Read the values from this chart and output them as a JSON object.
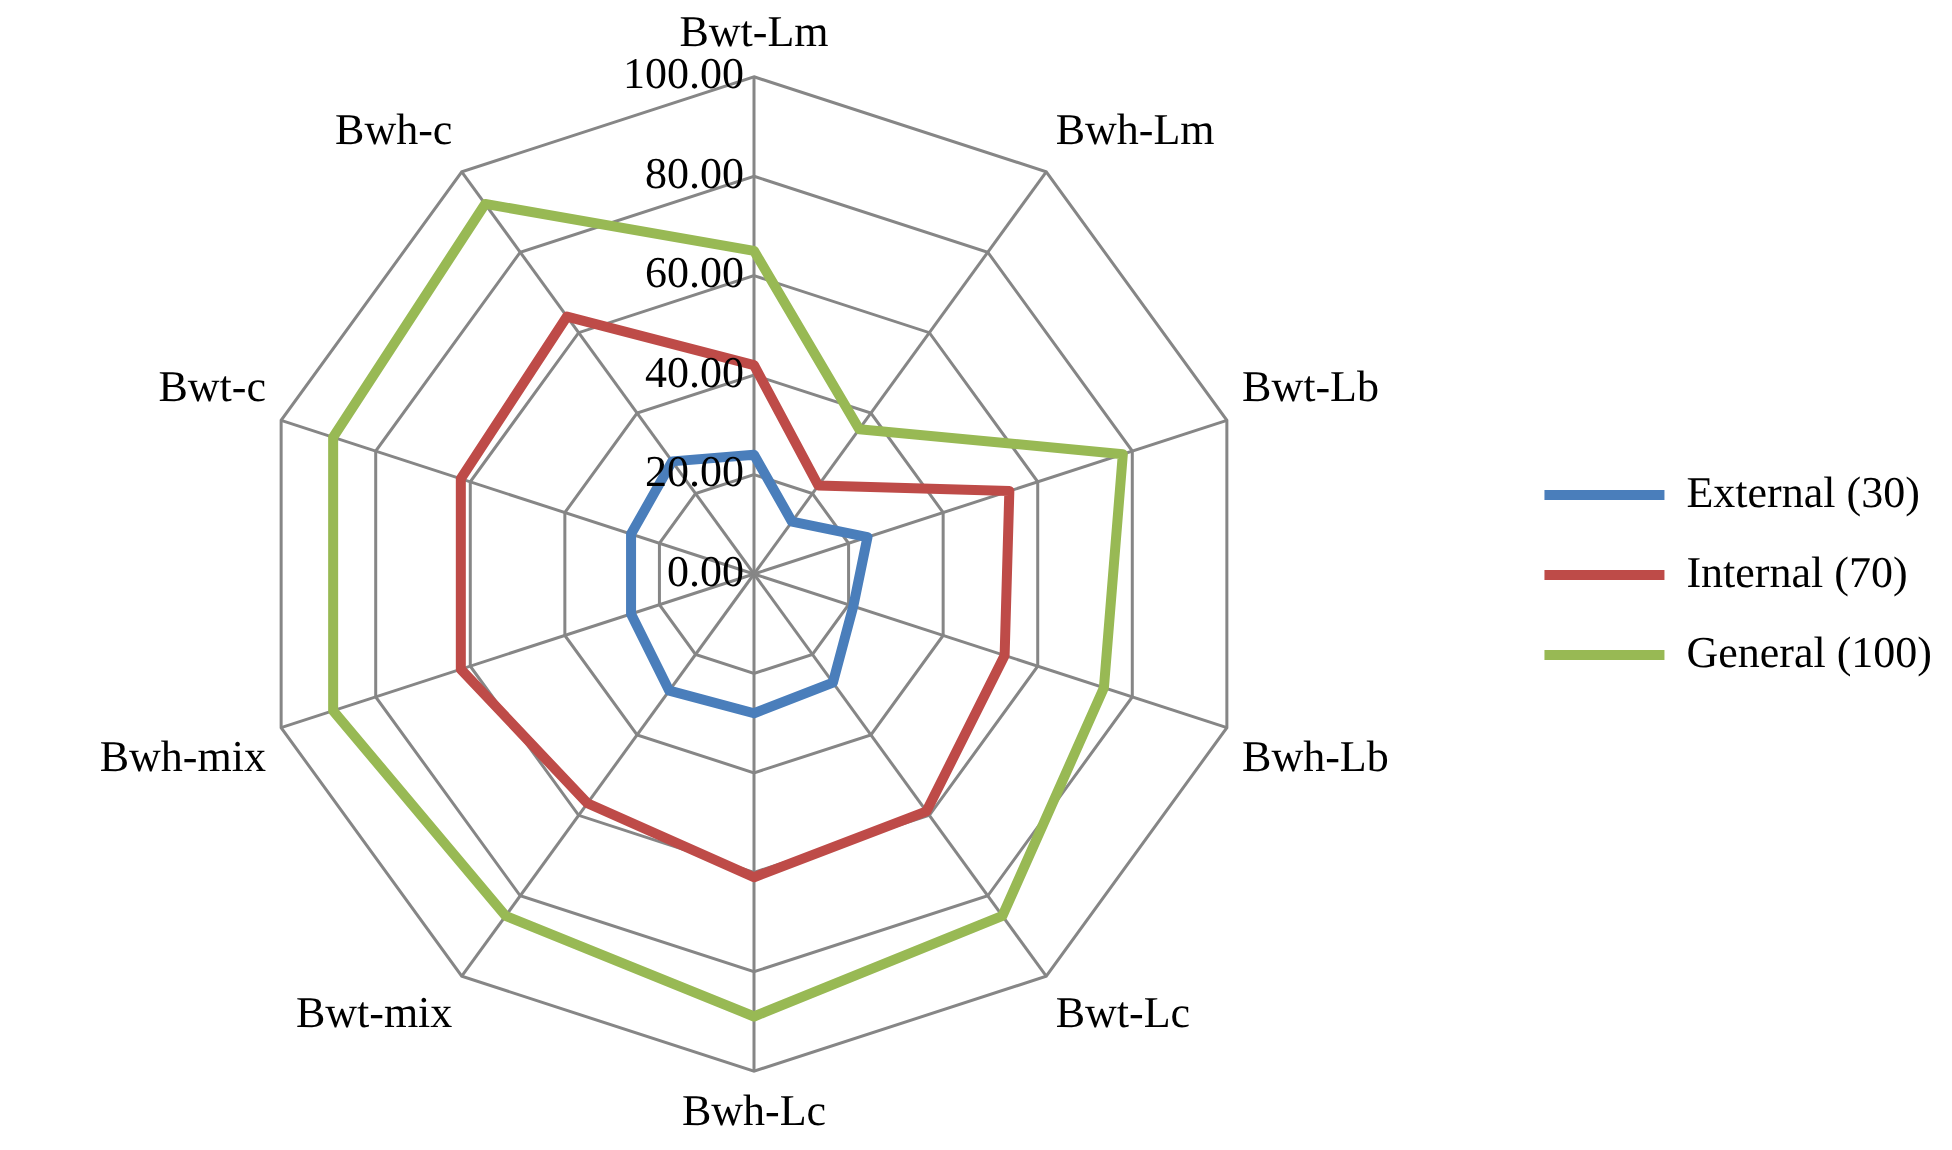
{
  "chart_data": {
    "type": "radar",
    "categories": [
      "Bwt-Lm",
      "Bwh-Lm",
      "Bwt-Lb",
      "Bwh-Lb",
      "Bwt-Lc",
      "Bwh-Lc",
      "Bwt-mix",
      "Bwh-mix",
      "Bwt-c",
      "Bwh-c"
    ],
    "series": [
      {
        "name": "External (30)",
        "color": "#4a7ebb",
        "values": [
          24,
          13,
          24,
          21,
          27,
          28,
          29,
          26,
          26,
          28
        ]
      },
      {
        "name": "Internal (70)",
        "color": "#be4b48",
        "values": [
          42,
          22,
          54,
          53,
          59,
          61,
          57,
          62,
          62,
          64
        ]
      },
      {
        "name": "General (100)",
        "color": "#98b954",
        "values": [
          65,
          36,
          78,
          74,
          85,
          89,
          85,
          89,
          89,
          92
        ]
      }
    ],
    "ylim": [
      0,
      100
    ],
    "yticks": [
      {
        "value": 0,
        "label": "0.00"
      },
      {
        "value": 20,
        "label": "20.00"
      },
      {
        "value": 40,
        "label": "40.00"
      },
      {
        "value": 60,
        "label": "60.00"
      },
      {
        "value": 80,
        "label": "80.00"
      },
      {
        "value": 100,
        "label": "100.00"
      }
    ],
    "grid": true,
    "legend": "right",
    "marker": "none",
    "line_style": "solid"
  }
}
